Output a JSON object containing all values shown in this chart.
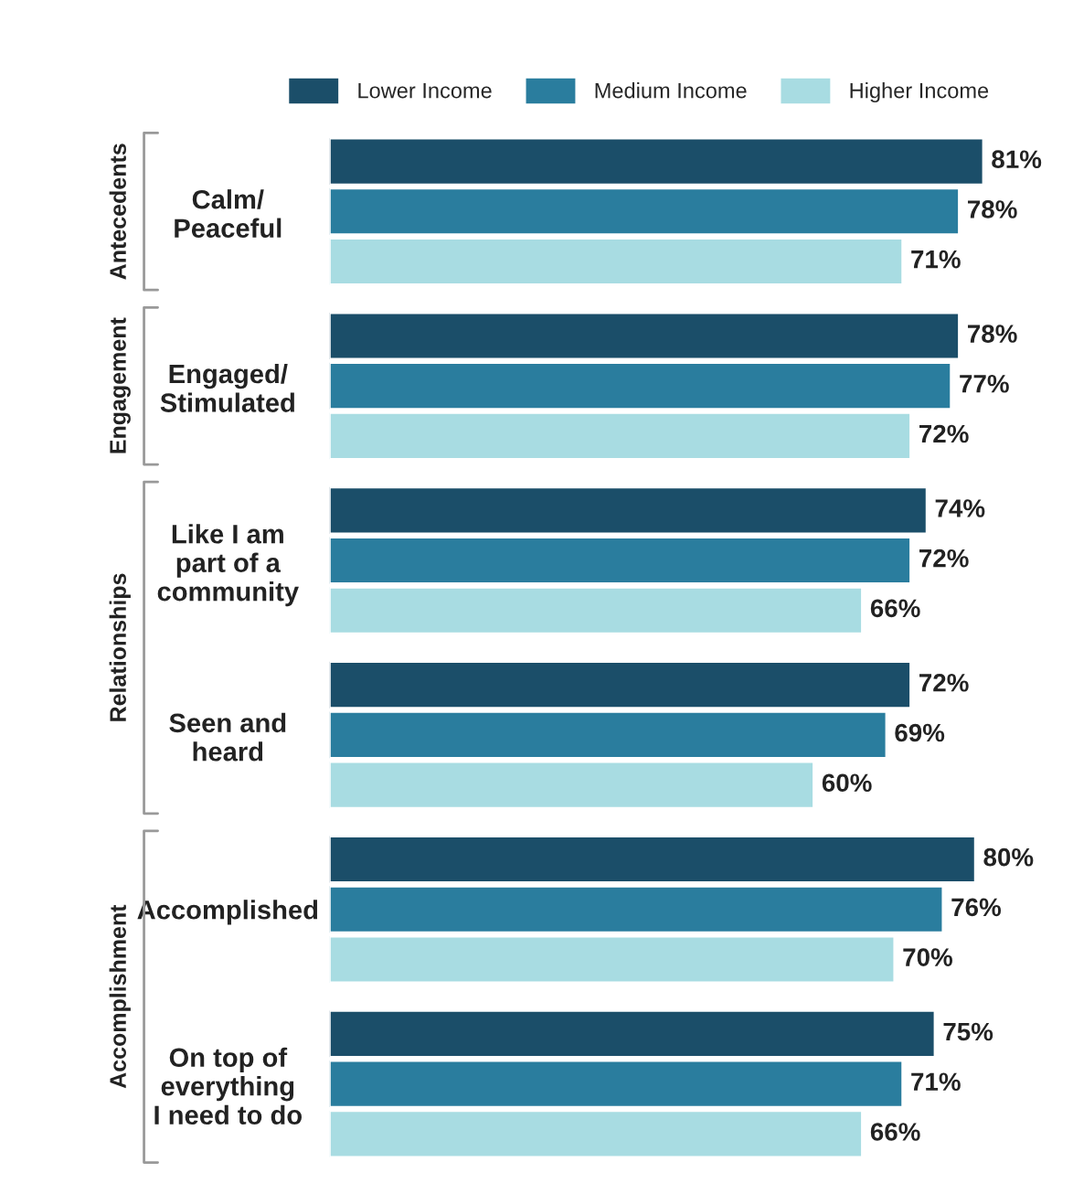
{
  "chart_data": {
    "type": "bar",
    "orientation": "horizontal",
    "categories": [
      "Calm/\nPeaceful",
      "Engaged/\nStimulated",
      "Like I am\npart of a\ncommunity",
      "Seen and\nheard",
      "Accomplished",
      "On top of\neverything\nI need to do"
    ],
    "series": [
      {
        "name": "Lower Income",
        "color": "#1b4e69",
        "values": [
          81,
          78,
          74,
          72,
          80,
          75
        ],
        "value_labels": [
          "81%",
          "78%",
          "74%",
          "72%",
          "80%",
          "75%"
        ]
      },
      {
        "name": "Medium Income",
        "color": "#2a7d9e",
        "values": [
          78,
          77,
          72,
          69,
          76,
          71
        ],
        "value_labels": [
          "78%",
          "77%",
          "72%",
          "69%",
          "76%",
          "71%"
        ]
      },
      {
        "name": "Higher Income",
        "color": "#a8dce2",
        "values": [
          71,
          72,
          66,
          60,
          70,
          66
        ],
        "value_labels": [
          "71%",
          "72%",
          "66%",
          "60%",
          "70%",
          "66%"
        ]
      }
    ],
    "annotations": [
      "Antecedents",
      "Engagement",
      "Relationships",
      "Accomplishment"
    ],
    "legend": "top",
    "grid": false,
    "tick_labels": "y"
  }
}
